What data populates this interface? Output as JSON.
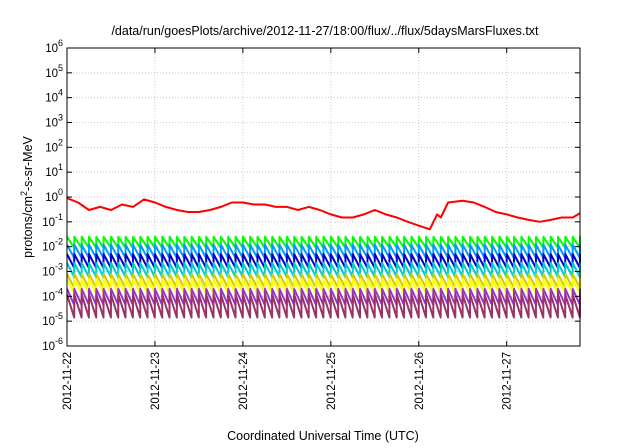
{
  "chart_data": {
    "type": "line",
    "title": "/data/run/goesPlots/archive/2012-11-27/18:00/flux/../flux/5daysMarsFluxes.txt",
    "xlabel": "Coordinated Universal Time (UTC)",
    "ylabel": {
      "base": "protons/cm",
      "sup": "2",
      "rest": "-s-sr-MeV"
    },
    "x_ticks": [
      "2012-11-22",
      "2012-11-23",
      "2012-11-24",
      "2012-11-25",
      "2012-11-26",
      "2012-11-27"
    ],
    "xlim": [
      "2012-11-22T00:00",
      "2012-11-27T20:00"
    ],
    "y_scale": "log",
    "ylim": [
      1e-06,
      1000000.0
    ],
    "y_ticks": [
      {
        "base": "10",
        "exp": "-6"
      },
      {
        "base": "10",
        "exp": "-5"
      },
      {
        "base": "10",
        "exp": "-4"
      },
      {
        "base": "10",
        "exp": "-3"
      },
      {
        "base": "10",
        "exp": "-2"
      },
      {
        "base": "10",
        "exp": "-1"
      },
      {
        "base": "10",
        "exp": "0"
      },
      {
        "base": "10",
        "exp": "1"
      },
      {
        "base": "10",
        "exp": "2"
      },
      {
        "base": "10",
        "exp": "3"
      },
      {
        "base": "10",
        "exp": "4"
      },
      {
        "base": "10",
        "exp": "5"
      },
      {
        "base": "10",
        "exp": "6"
      }
    ],
    "grid": true,
    "sawtooth_period_hours": 2,
    "series": [
      {
        "color": "#ff0000",
        "points": [
          [
            "2012-11-22T00:00",
            0.9
          ],
          [
            "2012-11-22T03:00",
            0.6
          ],
          [
            "2012-11-22T06:00",
            0.3
          ],
          [
            "2012-11-22T09:00",
            0.4
          ],
          [
            "2012-11-22T12:00",
            0.3
          ],
          [
            "2012-11-22T15:00",
            0.5
          ],
          [
            "2012-11-22T18:00",
            0.4
          ],
          [
            "2012-11-22T21:00",
            0.8
          ],
          [
            "2012-11-23T00:00",
            0.6
          ],
          [
            "2012-11-23T03:00",
            0.4
          ],
          [
            "2012-11-23T06:00",
            0.3
          ],
          [
            "2012-11-23T09:00",
            0.25
          ],
          [
            "2012-11-23T12:00",
            0.25
          ],
          [
            "2012-11-23T15:00",
            0.3
          ],
          [
            "2012-11-23T18:00",
            0.4
          ],
          [
            "2012-11-23T21:00",
            0.6
          ],
          [
            "2012-11-24T00:00",
            0.6
          ],
          [
            "2012-11-24T03:00",
            0.5
          ],
          [
            "2012-11-24T06:00",
            0.5
          ],
          [
            "2012-11-24T09:00",
            0.4
          ],
          [
            "2012-11-24T12:00",
            0.4
          ],
          [
            "2012-11-24T15:00",
            0.3
          ],
          [
            "2012-11-24T18:00",
            0.4
          ],
          [
            "2012-11-24T21:00",
            0.3
          ],
          [
            "2012-11-25T00:00",
            0.2
          ],
          [
            "2012-11-25T03:00",
            0.15
          ],
          [
            "2012-11-25T06:00",
            0.15
          ],
          [
            "2012-11-25T09:00",
            0.2
          ],
          [
            "2012-11-25T12:00",
            0.3
          ],
          [
            "2012-11-25T15:00",
            0.2
          ],
          [
            "2012-11-25T18:00",
            0.15
          ],
          [
            "2012-11-25T21:00",
            0.1
          ],
          [
            "2012-11-26T00:00",
            0.07
          ],
          [
            "2012-11-26T03:00",
            0.05
          ],
          [
            "2012-11-26T05:00",
            0.2
          ],
          [
            "2012-11-26T06:00",
            0.15
          ],
          [
            "2012-11-26T08:00",
            0.6
          ],
          [
            "2012-11-26T12:00",
            0.7
          ],
          [
            "2012-11-26T15:00",
            0.6
          ],
          [
            "2012-11-26T18:00",
            0.4
          ],
          [
            "2012-11-26T21:00",
            0.25
          ],
          [
            "2012-11-27T00:00",
            0.2
          ],
          [
            "2012-11-27T03:00",
            0.15
          ],
          [
            "2012-11-27T06:00",
            0.12
          ],
          [
            "2012-11-27T09:00",
            0.1
          ],
          [
            "2012-11-27T12:00",
            0.12
          ],
          [
            "2012-11-27T15:00",
            0.15
          ],
          [
            "2012-11-27T18:00",
            0.15
          ],
          [
            "2012-11-27T20:00",
            0.22
          ]
        ]
      },
      {
        "color": "#00ff00",
        "peak": 0.025,
        "trough": 0.009
      },
      {
        "color": "#0099ff",
        "peak": 0.012,
        "trough": 0.0035
      },
      {
        "color": "#0000cc",
        "peak": 0.005,
        "trough": 0.0014
      },
      {
        "color": "#00cccc",
        "peak": 0.0022,
        "trough": 0.0006
      },
      {
        "color": "#cccc00",
        "peak": 0.0008,
        "trough": 0.00022
      },
      {
        "color": "#ffff00",
        "peak": 0.0005,
        "trough": 0.00013
      },
      {
        "color": "#9933cc",
        "peak": 0.0002,
        "trough": 4.5e-05
      },
      {
        "color": "#993366",
        "peak": 0.00012,
        "trough": 1.4e-05
      }
    ]
  }
}
